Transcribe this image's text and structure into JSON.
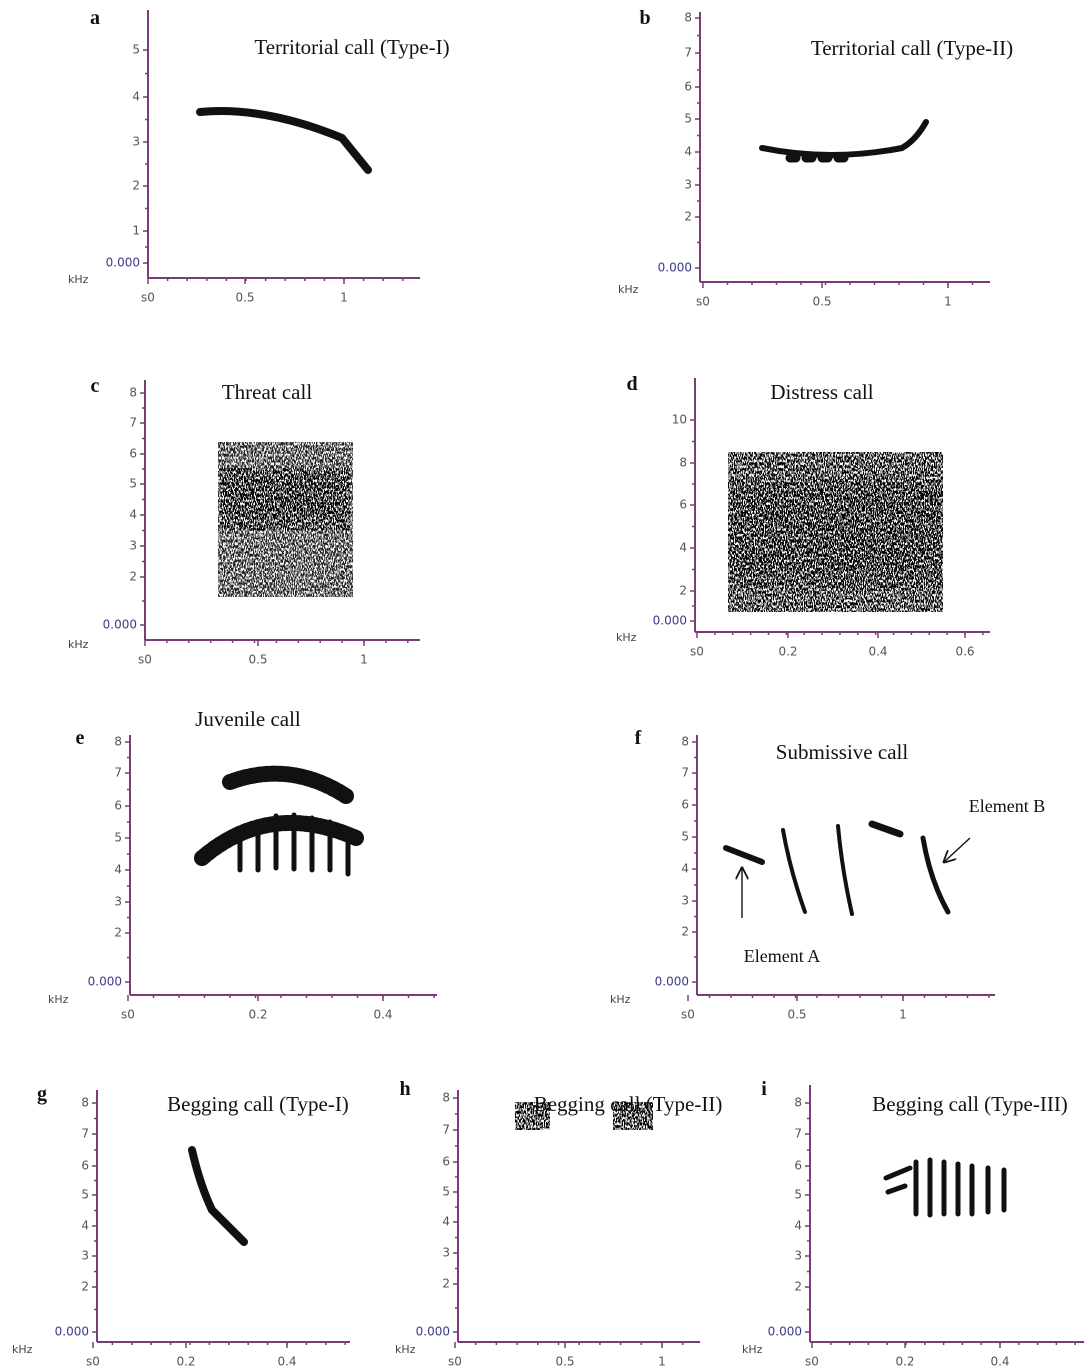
{
  "panels": [
    {
      "letter": "a",
      "title": "Territorial call (Type-I)",
      "y_unit": "kHz",
      "yticks": [
        "5",
        "4",
        "3",
        "2",
        "1",
        "0.000"
      ],
      "xticks": [
        "s0",
        "0.5",
        "1"
      ]
    },
    {
      "letter": "b",
      "title": "Territorial call (Type-II)",
      "y_unit": "kHz",
      "yticks": [
        "8",
        "7",
        "6",
        "5",
        "4",
        "3",
        "2",
        "0.000"
      ],
      "xticks": [
        "s0",
        "0.5",
        "1"
      ]
    },
    {
      "letter": "c",
      "title": "Threat call",
      "y_unit": "kHz",
      "yticks": [
        "8",
        "7",
        "6",
        "5",
        "4",
        "3",
        "2",
        "0.000"
      ],
      "xticks": [
        "s0",
        "0.5",
        "1"
      ]
    },
    {
      "letter": "d",
      "title": "Distress call",
      "y_unit": "kHz",
      "yticks": [
        "10",
        "8",
        "6",
        "4",
        "2",
        "0.000"
      ],
      "xticks": [
        "s0",
        "0.2",
        "0.4",
        "0.6"
      ]
    },
    {
      "letter": "e",
      "title": "Juvenile call",
      "y_unit": "kHz",
      "yticks": [
        "8",
        "7",
        "6",
        "5",
        "4",
        "3",
        "2",
        "0.000"
      ],
      "xticks": [
        "s0",
        "0.2",
        "0.4"
      ]
    },
    {
      "letter": "f",
      "title": "Submissive call",
      "y_unit": "kHz",
      "yticks": [
        "8",
        "7",
        "6",
        "5",
        "4",
        "3",
        "2",
        "0.000"
      ],
      "xticks": [
        "s0",
        "0.5",
        "1"
      ],
      "annotations": [
        "Element B",
        "Element A"
      ]
    },
    {
      "letter": "g",
      "title": "Begging call (Type-I)",
      "y_unit": "kHz",
      "yticks": [
        "8",
        "7",
        "6",
        "5",
        "4",
        "3",
        "2",
        "0.000"
      ],
      "xticks": [
        "s0",
        "0.2",
        "0.4"
      ]
    },
    {
      "letter": "h",
      "title": "Begging call (Type-II)",
      "y_unit": "kHz",
      "yticks": [
        "8",
        "7",
        "6",
        "5",
        "4",
        "3",
        "2",
        "0.000"
      ],
      "xticks": [
        "s0",
        "0.5",
        "1"
      ]
    },
    {
      "letter": "i",
      "title": "Begging call (Type-III)",
      "y_unit": "kHz",
      "yticks": [
        "8",
        "7",
        "6",
        "5",
        "4",
        "3",
        "2",
        "0.000"
      ],
      "xticks": [
        "s0",
        "0.2",
        "0.4"
      ]
    }
  ]
}
